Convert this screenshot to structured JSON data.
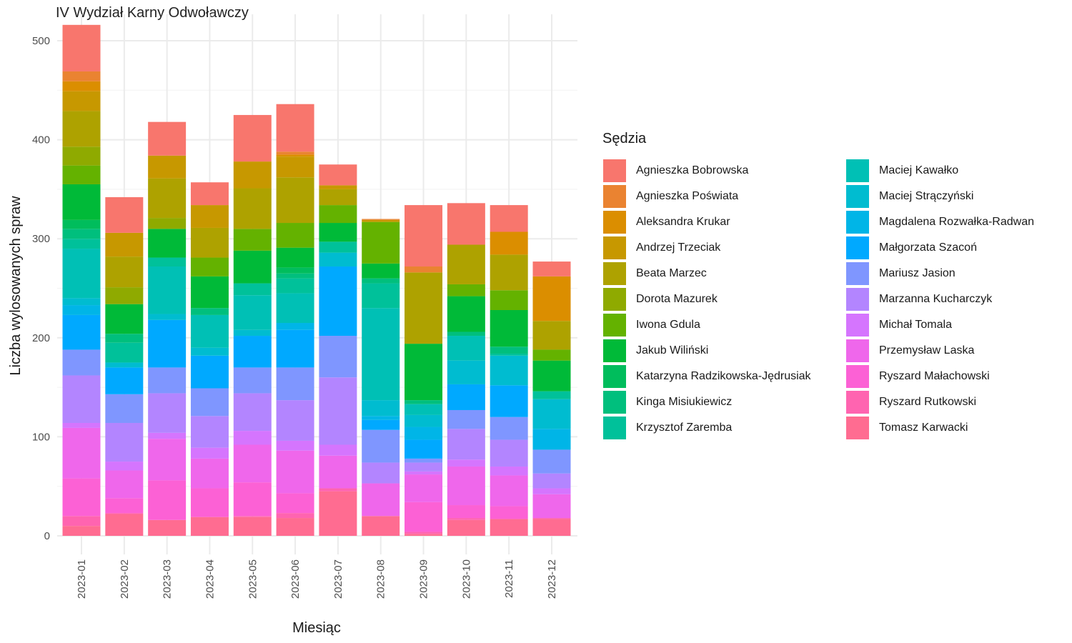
{
  "chart_data": {
    "type": "bar",
    "stacked": true,
    "title": "IV Wydział Karny Odwoławczy",
    "xlabel": "Miesiąc",
    "ylabel": "Liczba wylosowanych spraw",
    "ylim": [
      0,
      520
    ],
    "yticks": [
      0,
      100,
      200,
      300,
      400,
      500
    ],
    "grid": true,
    "legend_title": "Sędzia",
    "legend_position": "right",
    "categories": [
      "2023-01",
      "2023-02",
      "2023-03",
      "2023-04",
      "2023-05",
      "2023-06",
      "2023-07",
      "2023-08",
      "2023-09",
      "2023-10",
      "2023-11",
      "2023-12"
    ],
    "series": [
      {
        "name": "Agnieszka Bobrowska",
        "color": "#F8766D",
        "values": [
          47,
          36,
          34,
          23,
          47,
          48,
          21,
          0,
          62,
          42,
          27,
          15
        ]
      },
      {
        "name": "Agnieszka Poświata",
        "color": "#EA8331",
        "values": [
          10,
          0,
          0,
          0,
          0,
          3,
          0,
          1,
          6,
          0,
          0,
          0
        ]
      },
      {
        "name": "Aleksandra Krukar",
        "color": "#DB8E00",
        "values": [
          10,
          0,
          0,
          0,
          0,
          2,
          0,
          0,
          0,
          0,
          23,
          45
        ]
      },
      {
        "name": "Andrzej Trzeciak",
        "color": "#C79800",
        "values": [
          20,
          24,
          23,
          23,
          27,
          21,
          4,
          2,
          0,
          0,
          0,
          0
        ]
      },
      {
        "name": "Beata Marzec",
        "color": "#AEA200",
        "values": [
          36,
          31,
          40,
          30,
          41,
          46,
          16,
          0,
          72,
          40,
          36,
          29
        ]
      },
      {
        "name": "Dorota Mazurek",
        "color": "#8FAA00",
        "values": [
          19,
          17,
          11,
          0,
          0,
          0,
          0,
          0,
          0,
          0,
          0,
          0
        ]
      },
      {
        "name": "Iwona Gdula",
        "color": "#64B200",
        "values": [
          19,
          0,
          0,
          19,
          22,
          25,
          18,
          42,
          0,
          12,
          20,
          11
        ]
      },
      {
        "name": "Jakub Wiliński",
        "color": "#00BA38",
        "values": [
          36,
          30,
          29,
          32,
          33,
          20,
          19,
          15,
          57,
          36,
          37,
          31
        ]
      },
      {
        "name": "Katarzyna Radzikowska-Jędrusiak",
        "color": "#00BD5C",
        "values": [
          9,
          0,
          0,
          0,
          0,
          6,
          0,
          0,
          0,
          0,
          0,
          0
        ]
      },
      {
        "name": "Kinga Misiukiewicz",
        "color": "#00BF7D",
        "values": [
          10,
          9,
          0,
          7,
          0,
          5,
          0,
          5,
          4,
          4,
          7,
          0
        ]
      },
      {
        "name": "Krzysztof Zaremba",
        "color": "#00C19A",
        "values": [
          10,
          20,
          9,
          0,
          12,
          15,
          11,
          25,
          0,
          0,
          2,
          8
        ]
      },
      {
        "name": "Maciej Kawałko",
        "color": "#00C0B5",
        "values": [
          50,
          0,
          48,
          33,
          35,
          30,
          0,
          93,
          11,
          25,
          0,
          0
        ]
      },
      {
        "name": "Maciej Strączyński",
        "color": "#00BCD0",
        "values": [
          7,
          5,
          6,
          8,
          6,
          0,
          14,
          16,
          12,
          24,
          30,
          30
        ]
      },
      {
        "name": "Magdalena Rozwałka-Radwan",
        "color": "#00B5E7",
        "values": [
          10,
          0,
          0,
          0,
          0,
          7,
          0,
          4,
          13,
          0,
          0,
          21
        ]
      },
      {
        "name": "Małgorzata Szacoń",
        "color": "#00A9FF",
        "values": [
          35,
          27,
          48,
          33,
          32,
          38,
          70,
          10,
          19,
          26,
          32,
          0
        ]
      },
      {
        "name": "Mariusz Jasion",
        "color": "#7F96FF",
        "values": [
          26,
          29,
          26,
          28,
          26,
          33,
          42,
          33,
          4,
          19,
          23,
          24
        ]
      },
      {
        "name": "Marzanna Kucharczyk",
        "color": "#B385FF",
        "values": [
          48,
          39,
          40,
          32,
          38,
          41,
          68,
          21,
          9,
          31,
          27,
          15
        ]
      },
      {
        "name": "Michał Tomala",
        "color": "#D575FE",
        "values": [
          5,
          9,
          6,
          11,
          14,
          10,
          11,
          0,
          3,
          7,
          9,
          6
        ]
      },
      {
        "name": "Przemysław Laska",
        "color": "#EF67EB",
        "values": [
          51,
          28,
          42,
          30,
          38,
          43,
          33,
          33,
          28,
          39,
          31,
          24
        ]
      },
      {
        "name": "Ryszard Małachowski",
        "color": "#FC61D5",
        "values": [
          38,
          15,
          40,
          29,
          34,
          20,
          0,
          0,
          30,
          13,
          13,
          0
        ]
      },
      {
        "name": "Ryszard Rutkowski",
        "color": "#FF64B0",
        "values": [
          10,
          1,
          0,
          0,
          1,
          5,
          3,
          0,
          2,
          2,
          0,
          1
        ]
      },
      {
        "name": "Tomasz Karwacki",
        "color": "#FF6C91",
        "values": [
          10,
          22,
          16,
          19,
          19,
          18,
          45,
          20,
          2,
          16,
          17,
          17
        ]
      }
    ]
  }
}
